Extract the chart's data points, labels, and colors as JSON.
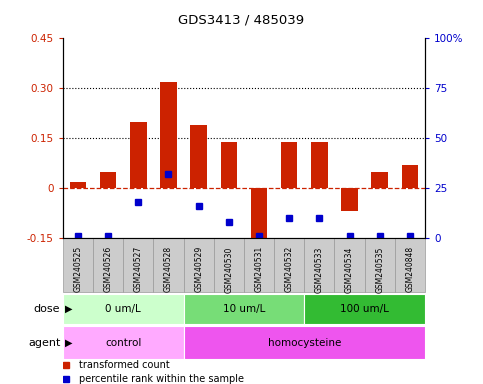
{
  "title": "GDS3413 / 485039",
  "samples": [
    "GSM240525",
    "GSM240526",
    "GSM240527",
    "GSM240528",
    "GSM240529",
    "GSM240530",
    "GSM240531",
    "GSM240532",
    "GSM240533",
    "GSM240534",
    "GSM240535",
    "GSM240848"
  ],
  "transformed_count": [
    0.02,
    0.05,
    0.2,
    0.32,
    0.19,
    0.14,
    -0.15,
    0.14,
    0.14,
    -0.07,
    0.05,
    0.07
  ],
  "blue_pct": [
    1,
    1,
    18,
    32,
    16,
    8,
    1,
    10,
    10,
    1,
    1,
    1
  ],
  "ylim_left": [
    -0.15,
    0.45
  ],
  "ylim_right": [
    0,
    100
  ],
  "yticks_left": [
    -0.15,
    0.0,
    0.15,
    0.3,
    0.45
  ],
  "yticks_left_labels": [
    "-0.15",
    "0",
    "0.15",
    "0.30",
    "0.45"
  ],
  "yticks_right": [
    0,
    25,
    50,
    75,
    100
  ],
  "yticks_right_labels": [
    "0",
    "25",
    "50",
    "75",
    "100%"
  ],
  "hlines": [
    0.15,
    0.3
  ],
  "bar_color_red": "#cc2200",
  "bar_color_blue": "#0000cc",
  "dose_groups": [
    {
      "label": "0 um/L",
      "start": 0,
      "end": 4,
      "color": "#ccffcc"
    },
    {
      "label": "10 um/L",
      "start": 4,
      "end": 8,
      "color": "#77dd77"
    },
    {
      "label": "100 um/L",
      "start": 8,
      "end": 12,
      "color": "#33bb33"
    }
  ],
  "agent_groups": [
    {
      "label": "control",
      "start": 0,
      "end": 4,
      "color": "#ffaaff"
    },
    {
      "label": "homocysteine",
      "start": 4,
      "end": 12,
      "color": "#ee55ee"
    }
  ],
  "legend_items": [
    {
      "label": "transformed count",
      "color": "#cc2200"
    },
    {
      "label": "percentile rank within the sample",
      "color": "#0000cc"
    }
  ],
  "dose_label": "dose",
  "agent_label": "agent",
  "bar_width": 0.55,
  "sample_box_color": "#cccccc",
  "sample_box_edge": "#999999"
}
